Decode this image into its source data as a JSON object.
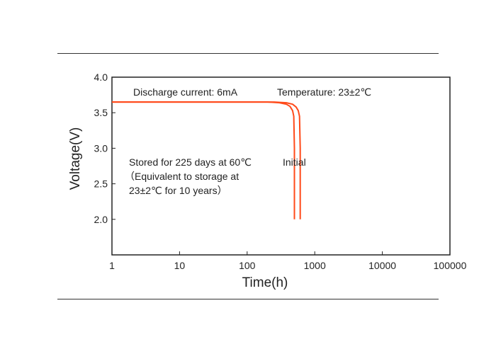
{
  "chart_data": {
    "type": "line",
    "xlabel": "Time(h)",
    "ylabel": "Voltage(V)",
    "x_scale": "log",
    "xlim": [
      1,
      100000
    ],
    "ylim": [
      1.5,
      4.0
    ],
    "x_ticks": [
      1,
      10,
      100,
      1000,
      10000,
      100000
    ],
    "x_tick_labels": [
      "1",
      "10",
      "100",
      "1000",
      "10000",
      "100000"
    ],
    "y_ticks": [
      2.0,
      2.5,
      3.0,
      3.5,
      4.0
    ],
    "y_tick_labels": [
      "2.0",
      "2.5",
      "3.0",
      "3.5",
      "4.0"
    ],
    "grid": false,
    "line_color": "#ff4a1a",
    "series": [
      {
        "x": [
          1,
          100,
          200,
          300,
          380,
          430,
          470,
          490,
          500,
          500
        ],
        "y": [
          3.65,
          3.65,
          3.65,
          3.64,
          3.62,
          3.59,
          3.53,
          3.45,
          3.0,
          2.0
        ]
      },
      {
        "x": [
          1,
          100,
          250,
          380,
          470,
          530,
          570,
          595,
          610,
          610
        ],
        "y": [
          3.65,
          3.65,
          3.65,
          3.64,
          3.62,
          3.58,
          3.53,
          3.45,
          3.0,
          2.0
        ]
      }
    ],
    "annotations": {
      "discharge": "Discharge current:  6mA",
      "temperature": "Temperature:  23±2℃",
      "stored_line1": "Stored for 225 days at 60℃",
      "stored_line2": "（Equivalent to storage at",
      "stored_line3": "23±2℃ for 10 years）",
      "initial": "Initial"
    }
  }
}
